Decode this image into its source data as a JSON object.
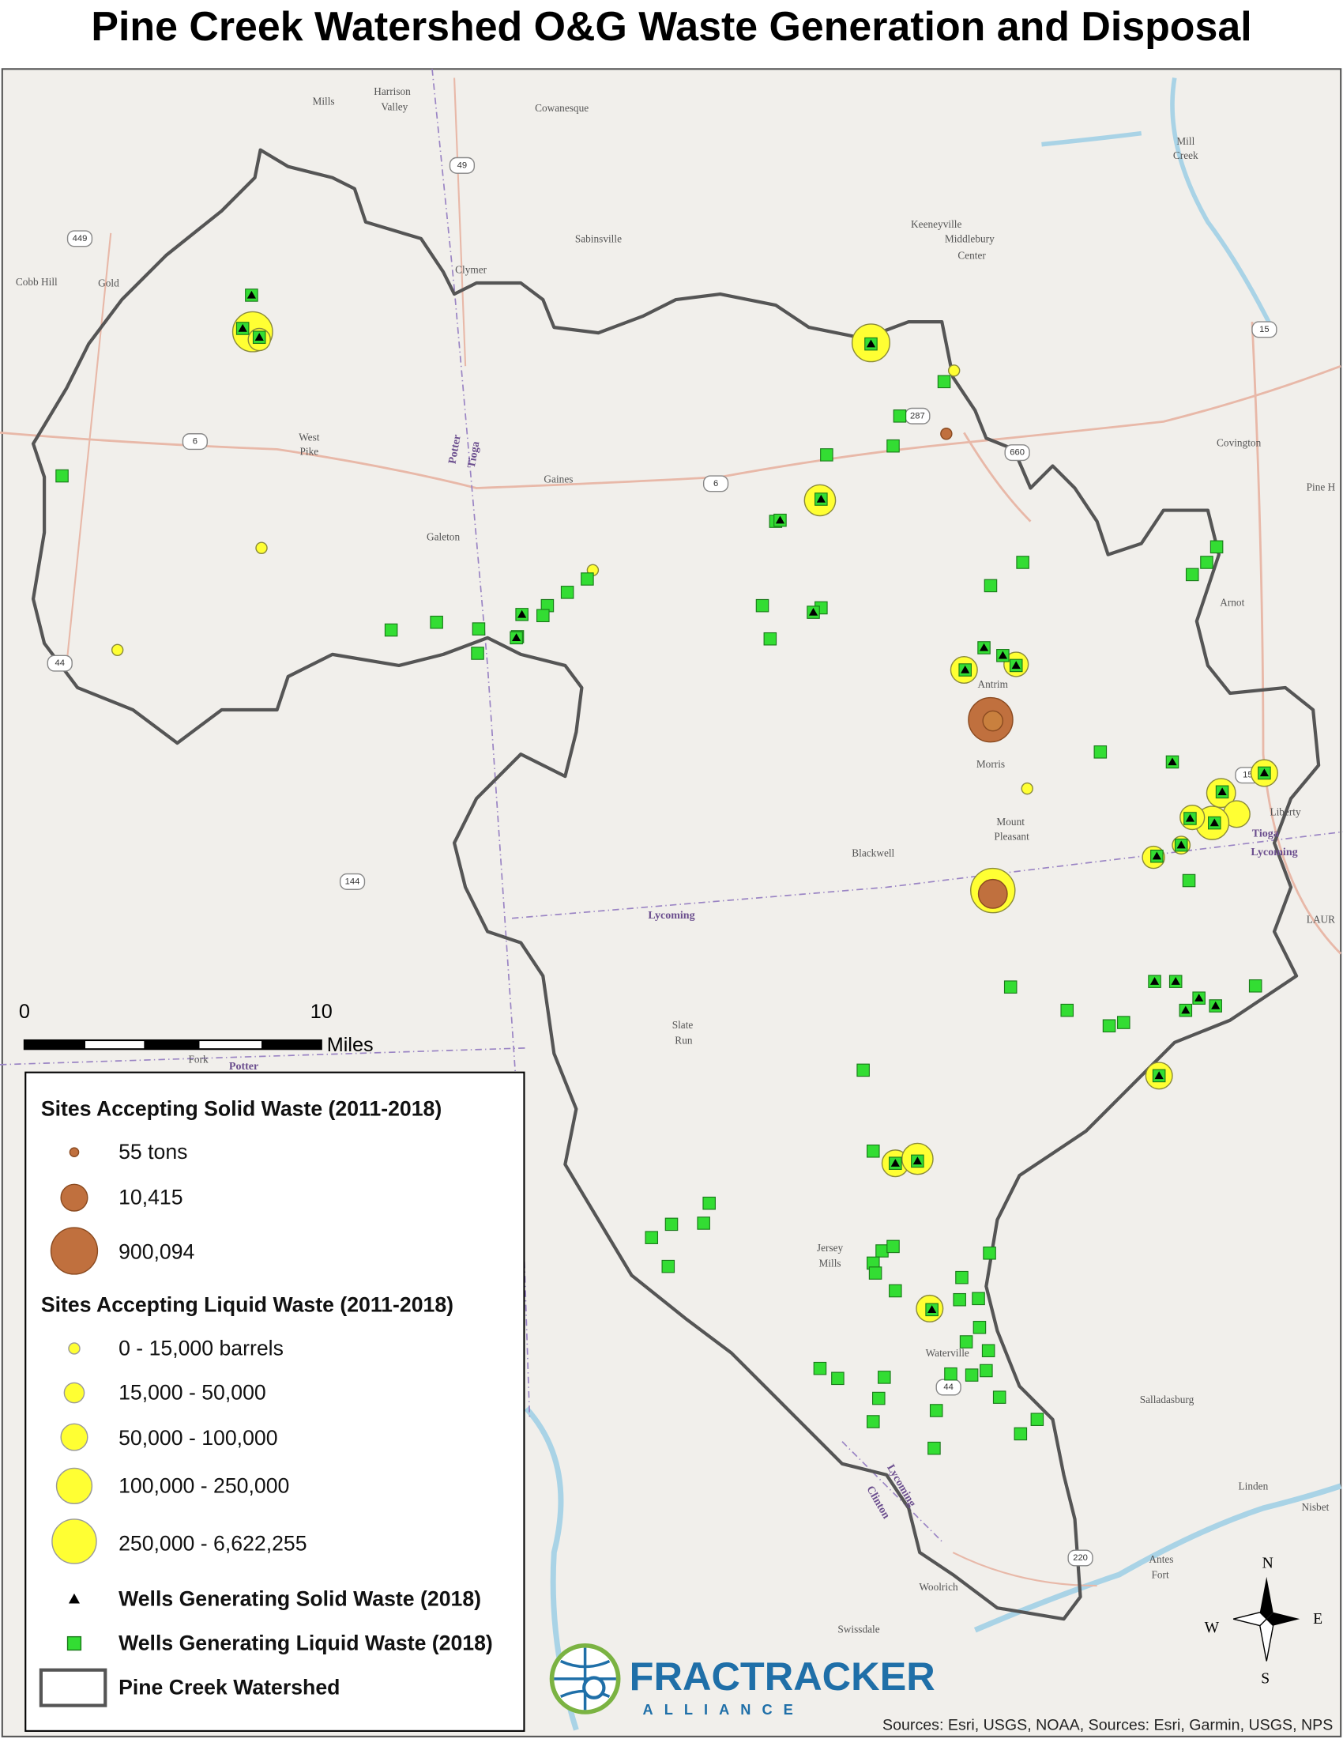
{
  "title": "Pine Creek Watershed O&G Waste Generation and Disposal",
  "map": {
    "labels": [
      "Mills",
      "Harrison",
      "Valley",
      "Cowanesque",
      "Mill",
      "Creek",
      "49",
      "449",
      "Cobb Hill",
      "Gold",
      "Sabinsville",
      "Clymer",
      "Keeneyville",
      "Middlebury",
      "Center",
      "15",
      "287",
      "660",
      "6",
      "West",
      "Pike",
      "Gaines",
      "6",
      "Covington",
      "Pine H",
      "Galeton",
      "Arnot",
      "44",
      "Antrim",
      "Morris",
      "15",
      "Liberty",
      "Mount",
      "Pleasant",
      "Tioga",
      "Lycoming",
      "Blackwell",
      "144",
      "Lycoming",
      "LAUR",
      "Slate",
      "Run",
      "Fork",
      "Potter",
      "Jersey",
      "Mills",
      "Waterville",
      "44",
      "Salladasburg",
      "Linden",
      "Nisbet",
      "Antes",
      "Fort",
      "220",
      "Woolrich",
      "Swissdale",
      "Potter",
      "Tioga",
      "Clinton",
      "Lycoming"
    ],
    "scale_bar": {
      "start": "0",
      "end": "10",
      "unit": "Miles"
    },
    "compass": {
      "north": "N",
      "south": "S",
      "east": "E",
      "west": "W"
    },
    "attribution": "Sources: Esri, USGS, NOAA, Sources: Esri, Garmin, USGS, NPS"
  },
  "legend": {
    "solid_title": "Sites Accepting Solid Waste (2011-2018)",
    "solid_items": [
      "55 tons",
      "10,415",
      "900,094"
    ],
    "liquid_title": "Sites Accepting Liquid Waste (2011-2018)",
    "liquid_items": [
      "0 - 15,000 barrels",
      "15,000 - 50,000",
      "50,000 - 100,000",
      "100,000 - 250,000",
      "250,000 - 6,622,255"
    ],
    "wells_solid": "Wells Generating Solid Waste (2018)",
    "wells_liquid": "Wells Generating Liquid Waste (2018)",
    "watershed": "Pine Creek Watershed"
  },
  "logo": {
    "name": "FRACTRACKER",
    "tagline": "ALLIANCE"
  }
}
